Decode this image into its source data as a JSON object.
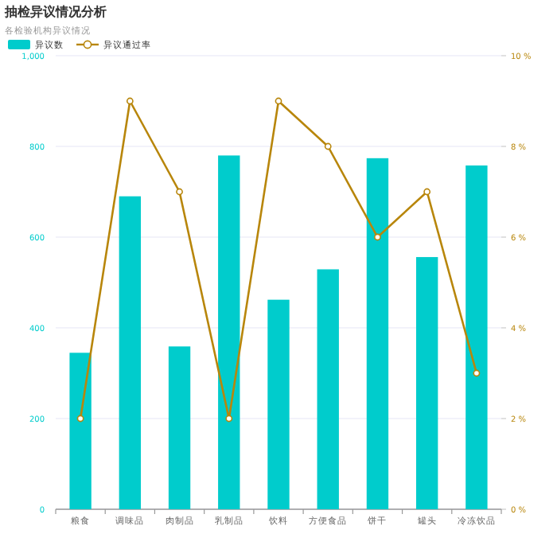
{
  "chart_data": {
    "type": "bar",
    "title": "抽检异议情况分析",
    "subtitle": "各检验机构异议情况",
    "categories": [
      "粮食",
      "调味品",
      "肉制品",
      "乳制品",
      "饮料",
      "方便食品",
      "饼干",
      "罐头",
      "冷冻饮品"
    ],
    "series": [
      {
        "name": "异议数",
        "color": "#00cccc",
        "values": [
          345,
          690,
          359,
          780,
          462,
          529,
          774,
          556,
          758
        ]
      },
      {
        "name": "异议通过率",
        "type": "line",
        "axis": "y2",
        "color": "#b8860b",
        "values": [
          2,
          9,
          7,
          2,
          9,
          8,
          6,
          7,
          3
        ]
      }
    ],
    "ylim": [
      0,
      1000
    ],
    "yticks": [
      0,
      200,
      400,
      600,
      {
        "value": 800,
        "label": "800"
      },
      {
        "value": 1000,
        "label": "1,000"
      }
    ],
    "y2lim": [
      0,
      10
    ],
    "y2ticks": [
      {
        "value": 0,
        "label": "0 %"
      },
      {
        "value": 2,
        "label": "2 %"
      },
      {
        "value": 4,
        "label": "4 %"
      },
      {
        "value": 6,
        "label": "6 %"
      },
      {
        "value": 8,
        "label": "8 %"
      },
      {
        "value": 10,
        "label": "10 %"
      }
    ],
    "grid": "y",
    "legend": "top left",
    "marker": "circle"
  }
}
